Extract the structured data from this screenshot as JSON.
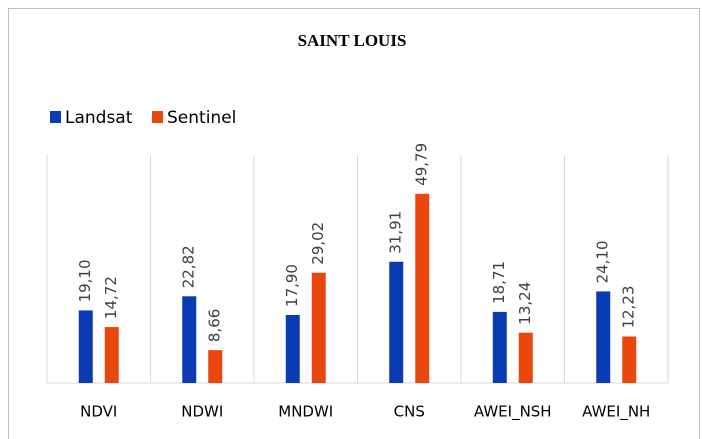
{
  "chart_data": {
    "type": "bar",
    "title": "SAINT LOUIS",
    "categories": [
      "NDVI",
      "NDWI",
      "MNDWI",
      "CNS",
      "AWEI_NSH",
      "AWEI_NH"
    ],
    "series": [
      {
        "name": "Landsat",
        "color": "#0b3bb3",
        "values": [
          19.1,
          22.82,
          17.9,
          31.91,
          18.71,
          24.1
        ],
        "value_labels": [
          "19,10",
          "22,82",
          "17,90",
          "31,91",
          "18,71",
          "24,10"
        ]
      },
      {
        "name": "Sentinel",
        "color": "#e9470e",
        "values": [
          14.72,
          8.66,
          29.02,
          49.79,
          13.24,
          12.23
        ],
        "value_labels": [
          "14,72",
          "8,66",
          "29,02",
          "49,79",
          "13,24",
          "12,23"
        ]
      }
    ],
    "ylim": [
      0,
      60
    ],
    "legend": "top-left"
  }
}
